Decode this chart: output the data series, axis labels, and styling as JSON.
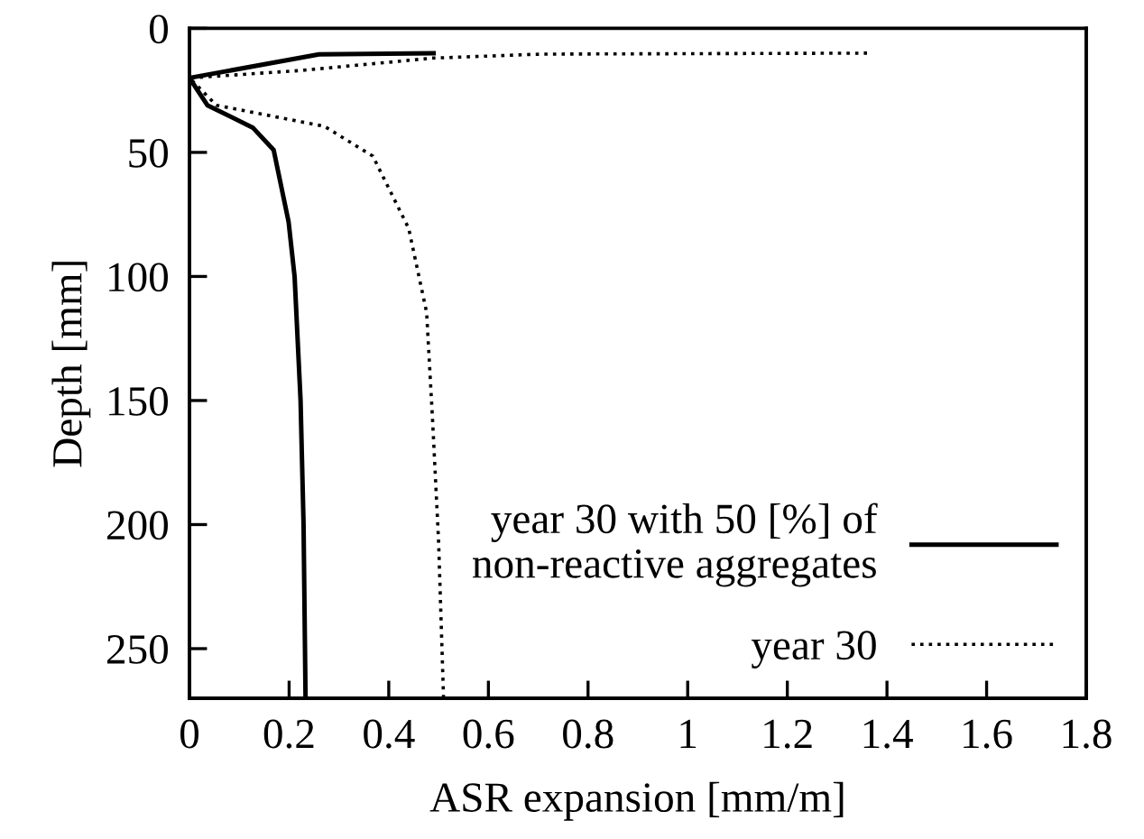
{
  "chart_data": {
    "type": "line",
    "xlabel": "ASR expansion [mm/m]",
    "ylabel": "Depth [mm]",
    "xlim": [
      0,
      1.8
    ],
    "xticks": [
      0,
      0.2,
      0.4,
      0.6,
      0.8,
      1,
      1.2,
      1.4,
      1.6,
      1.8
    ],
    "ylim": [
      270,
      0
    ],
    "yticks": [
      0,
      50,
      100,
      150,
      200,
      250
    ],
    "grid": false,
    "legend": "bottom right",
    "series": [
      {
        "name": "year 30 with 50 [%] of\nnon-reactive aggregates",
        "color": "#000000",
        "line_style": "solid",
        "x": [
          0.49,
          0.26,
          0,
          0.036,
          0.127,
          0.169,
          0.199,
          0.211,
          0.223,
          0.229,
          0.233
        ],
        "values": [
          10,
          10.5,
          20,
          31,
          40,
          49,
          78,
          100,
          150,
          200,
          270
        ]
      },
      {
        "name": "year 30",
        "color": "#000000",
        "line_style": "dotted",
        "x": [
          1.36,
          0.705,
          0.488,
          0.223,
          0,
          0.054,
          0.271,
          0.368,
          0.44,
          0.476,
          0.488,
          0.5,
          0.51
        ],
        "values": [
          10,
          10.4,
          12,
          17,
          20,
          31,
          39.5,
          51.5,
          80.6,
          114.5,
          158,
          206.6,
          270
        ]
      }
    ]
  }
}
